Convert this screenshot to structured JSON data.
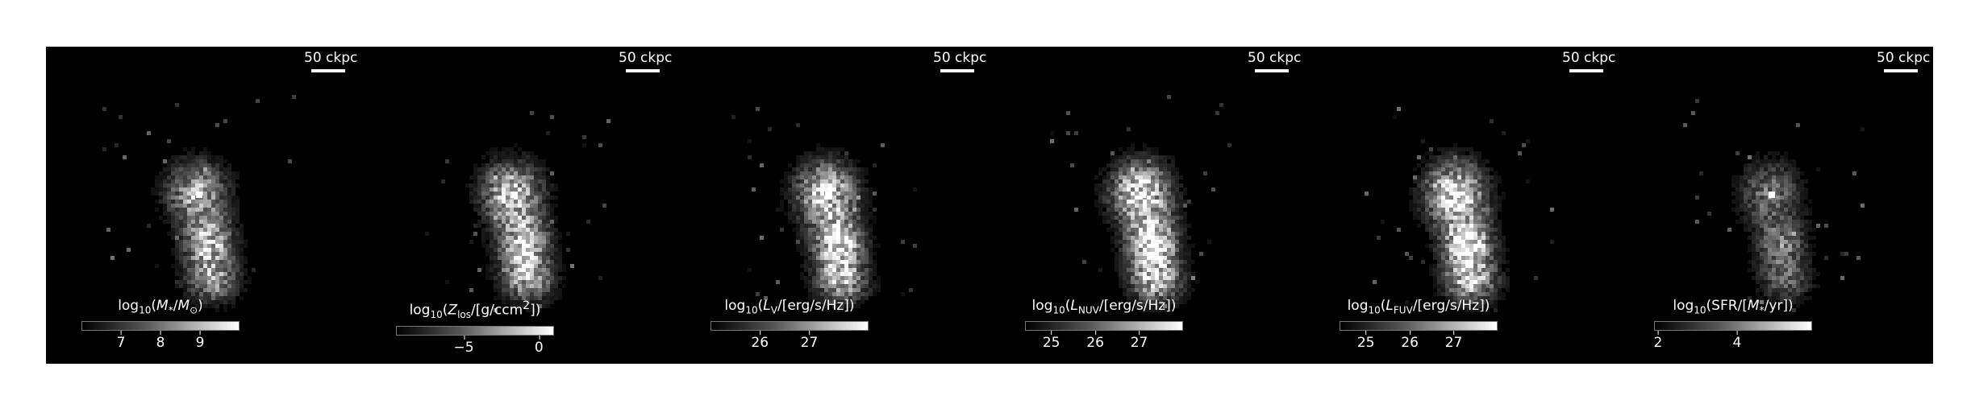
{
  "figure": {
    "scalebar_label": "50 ckpc",
    "colors": {
      "background": "#000000",
      "text": "#ffffff"
    },
    "panels": [
      {
        "id": "stellar-mass",
        "cbar_parts": [
          "log",
          "10",
          "(",
          "M",
          "*",
          "/",
          "M",
          "⊙",
          ")"
        ],
        "cbar_min": 6.0,
        "cbar_max": 10.0,
        "ticks": [
          {
            "label": "7",
            "value": 7
          },
          {
            "label": "8",
            "value": 8
          },
          {
            "label": "9",
            "value": 9
          }
        ],
        "brightness": 0.95
      },
      {
        "id": "metallicity",
        "cbar_parts": [
          "log",
          "10",
          "(",
          "Z",
          "los",
          "/[g/ccm",
          "2",
          "])"
        ],
        "cbar_min": -9.5,
        "cbar_max": 1.0,
        "ticks": [
          {
            "label": "−5",
            "value": -5
          },
          {
            "label": "0",
            "value": 0
          }
        ],
        "brightness": 1.1
      },
      {
        "id": "luminosity-v",
        "cbar_parts": [
          "log",
          "10",
          "(",
          "L",
          "V",
          "/[erg/s/Hz])"
        ],
        "cbar_min": 25.0,
        "cbar_max": 28.2,
        "ticks": [
          {
            "label": "26",
            "value": 26
          },
          {
            "label": "27",
            "value": 27
          }
        ],
        "brightness": 1.2
      },
      {
        "id": "luminosity-nuv",
        "cbar_parts": [
          "log",
          "10",
          "(",
          "L",
          "NUV",
          "/[erg/s/Hz])"
        ],
        "cbar_min": 24.4,
        "cbar_max": 28.0,
        "ticks": [
          {
            "label": "25",
            "value": 25
          },
          {
            "label": "26",
            "value": 26
          },
          {
            "label": "27",
            "value": 27
          }
        ],
        "brightness": 1.3
      },
      {
        "id": "luminosity-fuv",
        "cbar_parts": [
          "log",
          "10",
          "(",
          "L",
          "FUV",
          "/[erg/s/Hz])"
        ],
        "cbar_min": 24.4,
        "cbar_max": 28.0,
        "ticks": [
          {
            "label": "25",
            "value": 25
          },
          {
            "label": "26",
            "value": 26
          },
          {
            "label": "27",
            "value": 27
          }
        ],
        "brightness": 1.3
      },
      {
        "id": "star-formation-rate",
        "cbar_parts": [
          "log",
          "10",
          "(SFR/[",
          "M",
          "*",
          "/yr])"
        ],
        "cbar_min": 1.9,
        "cbar_max": 5.9,
        "ticks": [
          {
            "label": "2",
            "value": 2
          },
          {
            "label": "4",
            "value": 4
          }
        ],
        "brightness": 0.6
      }
    ]
  }
}
